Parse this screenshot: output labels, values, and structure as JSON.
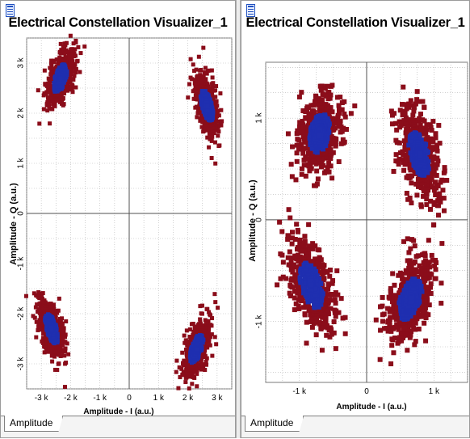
{
  "panels": [
    {
      "title": "Electrical Constellation Visualizer_1",
      "ylabel": "Amplitude - Q (a.u.)",
      "xlabel": "Amplitude - I (a.u.)",
      "tab": "Amplitude",
      "xticks": [
        "-3 k",
        "-2 k",
        "-1 k",
        "0",
        "1 k",
        "2 k",
        "3 k"
      ],
      "yticks": [
        "3 k",
        "2 k",
        "1 k",
        "0",
        "-1 k",
        "-2 k",
        "-3 k"
      ]
    },
    {
      "title": "Electrical Constellation Visualizer_1",
      "ylabel": "Amplitude - Q (a.u.)",
      "xlabel": "Amplitude - I (a.u.)",
      "tab": "Amplitude",
      "xticks": [
        "-1 k",
        "0",
        "1 k"
      ],
      "yticks": [
        "1 k",
        "0",
        "-1 k"
      ]
    }
  ],
  "colors": {
    "outer": "#8b0d1a",
    "inner": "#1f2fb0",
    "grid": "#b4b4b4"
  },
  "chart_data": [
    {
      "type": "scatter",
      "title": "Electrical Constellation Visualizer_1",
      "xlabel": "Amplitude - I (a.u.)",
      "ylabel": "Amplitude - Q (a.u.)",
      "xlim": [
        -3500,
        3500
      ],
      "ylim": [
        -3500,
        3500
      ],
      "grid": true,
      "clusters": [
        {
          "cx": -2350,
          "cy": 2700,
          "angle": 55,
          "sx": 600,
          "sy": 320
        },
        {
          "cx": 2650,
          "cy": 2150,
          "angle": -62,
          "sx": 620,
          "sy": 300
        },
        {
          "cx": -2650,
          "cy": -2300,
          "angle": -58,
          "sx": 620,
          "sy": 300
        },
        {
          "cx": 2300,
          "cy": -2700,
          "angle": 55,
          "sx": 600,
          "sy": 310
        }
      ]
    },
    {
      "type": "scatter",
      "title": "Electrical Constellation Visualizer_1",
      "xlabel": "Amplitude - I (a.u.)",
      "ylabel": "Amplitude - Q (a.u.)",
      "xlim": [
        -1500,
        1500
      ],
      "ylim": [
        -1600,
        1550
      ],
      "grid": true,
      "clusters": [
        {
          "cx": -700,
          "cy": 850,
          "angle": 65,
          "sx": 360,
          "sy": 260
        },
        {
          "cx": 780,
          "cy": 650,
          "angle": -65,
          "sx": 420,
          "sy": 240
        },
        {
          "cx": -820,
          "cy": -650,
          "angle": -60,
          "sx": 450,
          "sy": 250
        },
        {
          "cx": 650,
          "cy": -780,
          "angle": 55,
          "sx": 420,
          "sy": 250
        }
      ]
    }
  ]
}
